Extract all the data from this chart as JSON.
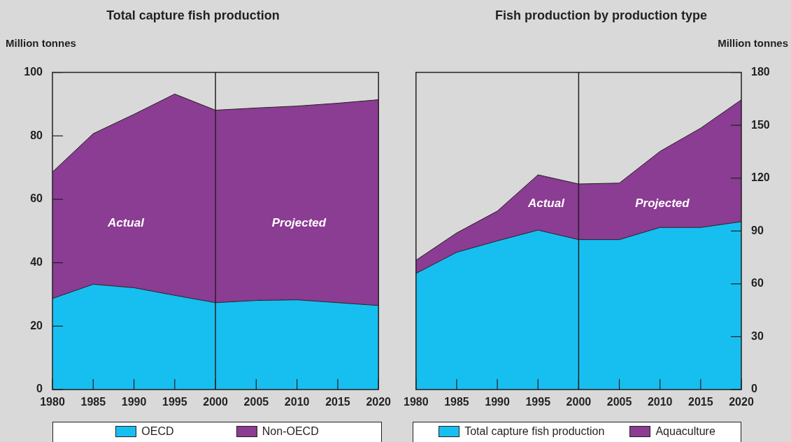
{
  "chart_data": [
    {
      "type": "area",
      "title": "Total capture fish production",
      "ylabel": "Million tonnes",
      "x": [
        1980,
        1985,
        1990,
        1995,
        2000,
        2005,
        2010,
        2015,
        2020
      ],
      "stacked": true,
      "series": [
        {
          "name": "OECD",
          "color": "#17bff0",
          "values": [
            28.7,
            33.2,
            32.1,
            29.7,
            27.4,
            28.1,
            28.3,
            27.4,
            26.5
          ]
        },
        {
          "name": "Non-OECD",
          "color": "#8b3c93",
          "values": [
            39.9,
            47.5,
            54.7,
            63.5,
            60.7,
            60.7,
            61.1,
            62.9,
            64.9
          ]
        }
      ],
      "xlim": [
        1980,
        2020
      ],
      "xticks": [
        1980,
        1985,
        1990,
        1995,
        2000,
        2005,
        2010,
        2015,
        2020
      ],
      "ylim": [
        0,
        100
      ],
      "yticks": [
        0,
        20,
        40,
        60,
        80,
        100
      ],
      "legend": "bottom",
      "ref_lines": [
        {
          "axis": "x",
          "value": 2000
        }
      ],
      "annotations": [
        "Actual",
        "Projected"
      ]
    },
    {
      "type": "area",
      "title": "Fish production by production type",
      "y2label": "Million tonnes",
      "x": [
        1980,
        1985,
        1990,
        1995,
        2000,
        2005,
        2010,
        2015,
        2020
      ],
      "stacked": true,
      "series": [
        {
          "name": "Total capture fish production",
          "color": "#17bff0",
          "axis": "y2",
          "values": [
            65.9,
            77.9,
            84.4,
            90.5,
            85.1,
            85.1,
            92.0,
            92.0,
            95.3
          ]
        },
        {
          "name": "Aquaculture",
          "color": "#8b3c93",
          "axis": "y2",
          "values": [
            7.5,
            11.0,
            16.9,
            31.4,
            31.6,
            32.1,
            43.2,
            56.4,
            69.2
          ]
        }
      ],
      "xlim": [
        1980,
        2020
      ],
      "xticks": [
        1980,
        1985,
        1990,
        1995,
        2000,
        2005,
        2010,
        2015,
        2020
      ],
      "y2lim": [
        0,
        180
      ],
      "y2ticks": [
        0,
        30,
        60,
        90,
        120,
        150,
        180
      ],
      "legend": "bottom",
      "ref_lines": [
        {
          "axis": "x",
          "value": 2000
        }
      ],
      "annotations": [
        "Actual",
        "Projected"
      ]
    }
  ]
}
